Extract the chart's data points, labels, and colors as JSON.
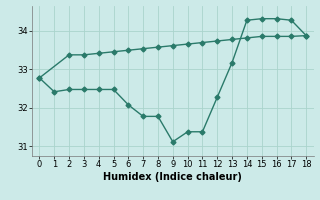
{
  "xlabel": "Humidex (Indice chaleur)",
  "xlim": [
    -0.5,
    18.5
  ],
  "ylim": [
    30.75,
    34.65
  ],
  "yticks": [
    31,
    32,
    33,
    34
  ],
  "xticks": [
    0,
    1,
    2,
    3,
    4,
    5,
    6,
    7,
    8,
    9,
    10,
    11,
    12,
    13,
    14,
    15,
    16,
    17,
    18
  ],
  "line_color": "#2a7a6a",
  "bg_color": "#cceae8",
  "grid_color": "#aad4cc",
  "line1_x": [
    0,
    2,
    3,
    4,
    5,
    6,
    7,
    8,
    9,
    10,
    11,
    12,
    13,
    14,
    15,
    16,
    17,
    18
  ],
  "line1_y": [
    32.78,
    33.38,
    33.38,
    33.42,
    33.46,
    33.5,
    33.54,
    33.58,
    33.62,
    33.66,
    33.7,
    33.74,
    33.78,
    33.82,
    33.86,
    33.86,
    33.86,
    33.88
  ],
  "line2_x": [
    0,
    1,
    2,
    3,
    4,
    5,
    6,
    7,
    8,
    9,
    10,
    11,
    12,
    13,
    14,
    15,
    16,
    17,
    18
  ],
  "line2_y": [
    32.78,
    32.42,
    32.48,
    32.48,
    32.48,
    32.48,
    32.08,
    31.78,
    31.78,
    31.12,
    31.38,
    31.38,
    32.28,
    33.18,
    34.28,
    34.32,
    34.32,
    34.28,
    33.88
  ],
  "marker": "D",
  "marker_size": 2.5,
  "linewidth": 1.0,
  "tick_fontsize": 6,
  "xlabel_fontsize": 7
}
